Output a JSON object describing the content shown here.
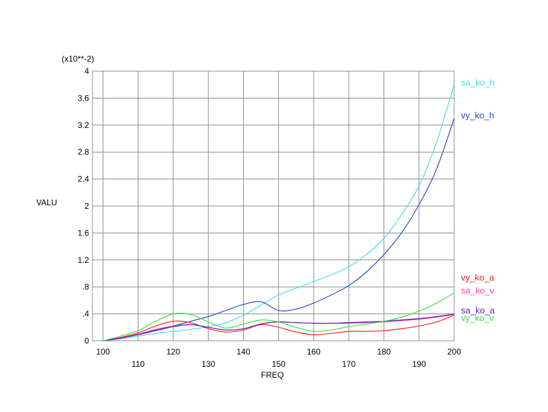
{
  "chart_data": {
    "type": "line",
    "xlabel": "FREQ",
    "ylabel": "VALU",
    "y_multiplier_label": "(x10**-2)",
    "xlim": [
      97,
      200
    ],
    "ylim": [
      0,
      4
    ],
    "grid": true,
    "legend_placement": "right",
    "x_tick_values": [
      100,
      110,
      120,
      130,
      140,
      150,
      160,
      170,
      180,
      190,
      200
    ],
    "x_tick_labels": [
      "100",
      "110",
      "120",
      "130",
      "140",
      "150",
      "160",
      "170",
      "180",
      "190",
      "200"
    ],
    "y_tick_values": [
      0,
      0.4,
      0.8,
      1.2,
      1.6,
      2,
      2.4,
      2.8,
      3.2,
      3.6,
      4
    ],
    "y_tick_labels": [
      "0",
      ".4",
      ".8",
      "1.2",
      "1.6",
      "2",
      "2.4",
      "2.8",
      "3.2",
      "3.6",
      "4"
    ],
    "series": [
      {
        "name": "sa_ko_h",
        "color": "#40e0e8",
        "x": [
          100,
          105,
          110,
          115,
          120,
          125,
          130,
          135,
          140,
          145,
          150,
          155,
          160,
          165,
          170,
          175,
          180,
          185,
          190,
          195,
          200
        ],
        "y": [
          0,
          0.03,
          0.07,
          0.11,
          0.14,
          0.17,
          0.21,
          0.27,
          0.38,
          0.53,
          0.68,
          0.78,
          0.88,
          0.98,
          1.1,
          1.28,
          1.52,
          1.87,
          2.3,
          2.95,
          3.8
        ]
      },
      {
        "name": "vy_ko_h",
        "color": "#2050d0",
        "x": [
          100,
          105,
          110,
          115,
          120,
          125,
          130,
          135,
          140,
          145,
          150,
          155,
          160,
          165,
          170,
          175,
          180,
          185,
          190,
          195,
          200
        ],
        "y": [
          0,
          0.04,
          0.1,
          0.16,
          0.22,
          0.29,
          0.36,
          0.45,
          0.54,
          0.58,
          0.45,
          0.47,
          0.56,
          0.68,
          0.82,
          1.02,
          1.28,
          1.6,
          2.02,
          2.55,
          3.3
        ]
      },
      {
        "name": "vy_ko_a",
        "color": "#ff2020",
        "x": [
          100,
          105,
          110,
          115,
          120,
          125,
          130,
          135,
          140,
          145,
          150,
          155,
          160,
          165,
          170,
          175,
          180,
          185,
          190,
          195,
          200
        ],
        "y": [
          0,
          0.05,
          0.12,
          0.22,
          0.29,
          0.27,
          0.18,
          0.13,
          0.16,
          0.24,
          0.2,
          0.13,
          0.09,
          0.11,
          0.14,
          0.14,
          0.15,
          0.18,
          0.22,
          0.28,
          0.38
        ]
      },
      {
        "name": "sa_ko_v",
        "color": "#ff40a0",
        "x": [
          100,
          105,
          110,
          115,
          120,
          125,
          130,
          135,
          140,
          145,
          150,
          155,
          160,
          165,
          170,
          175,
          180,
          185,
          190,
          195,
          200
        ],
        "y": [
          0,
          0.04,
          0.1,
          0.17,
          0.22,
          0.24,
          0.2,
          0.16,
          0.18,
          0.25,
          0.28,
          0.27,
          0.26,
          0.26,
          0.26,
          0.27,
          0.28,
          0.3,
          0.32,
          0.35,
          0.39
        ]
      },
      {
        "name": "sa_ko_a",
        "color": "#6020c0",
        "x": [
          100,
          105,
          110,
          115,
          120,
          125,
          130,
          135,
          140,
          145,
          150,
          155,
          160,
          165,
          170,
          175,
          180,
          185,
          190,
          195,
          200
        ],
        "y": [
          0,
          0.04,
          0.09,
          0.15,
          0.21,
          0.24,
          0.2,
          0.16,
          0.18,
          0.25,
          0.28,
          0.27,
          0.26,
          0.26,
          0.27,
          0.28,
          0.29,
          0.31,
          0.33,
          0.36,
          0.4
        ]
      },
      {
        "name": "vy_ko_v",
        "color": "#40e040",
        "x": [
          100,
          105,
          110,
          115,
          120,
          125,
          130,
          135,
          140,
          145,
          150,
          155,
          160,
          165,
          170,
          175,
          180,
          185,
          190,
          195,
          200
        ],
        "y": [
          0,
          0.07,
          0.15,
          0.29,
          0.4,
          0.39,
          0.28,
          0.19,
          0.25,
          0.31,
          0.28,
          0.2,
          0.14,
          0.16,
          0.21,
          0.25,
          0.29,
          0.35,
          0.44,
          0.56,
          0.71
        ]
      }
    ]
  },
  "legend_labels": [
    {
      "name": "sa_ko_h",
      "color": "#40e0e8"
    },
    {
      "name": "vy_ko_h",
      "color": "#2050d0"
    },
    {
      "name": "vy_ko_a",
      "color": "#ff2020"
    },
    {
      "name": "sa_ko_v",
      "color": "#ff40a0"
    },
    {
      "name": "sa_ko_a",
      "color": "#6020c0"
    },
    {
      "name": "vy_ko_v",
      "color": "#40e040"
    }
  ]
}
